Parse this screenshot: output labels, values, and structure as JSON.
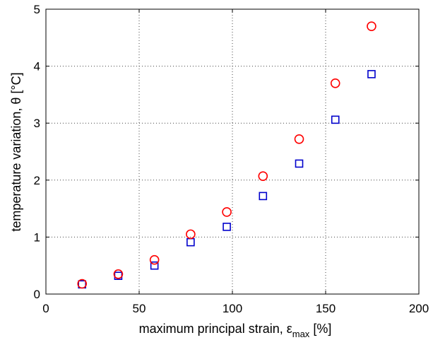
{
  "chart_data": {
    "type": "scatter",
    "title": "",
    "xlabel": {
      "main": "maximum principal strain, ε",
      "sub": "max",
      "suffix": " [%]"
    },
    "ylabel": "temperature variation, θ [°C]",
    "xlim": [
      0,
      200
    ],
    "ylim": [
      0,
      5
    ],
    "xticks": [
      "0",
      "50",
      "100",
      "150",
      "200"
    ],
    "yticks": [
      "0",
      "1",
      "2",
      "3",
      "4",
      "5"
    ],
    "grid": true,
    "grid_style": "dotted",
    "series": [
      {
        "marker": "square",
        "color": "#0000cc",
        "x": [
          19.4,
          38.8,
          58.2,
          77.6,
          97.0,
          116.4,
          135.8,
          155.2,
          174.6
        ],
        "y": [
          0.17,
          0.32,
          0.5,
          0.91,
          1.18,
          1.72,
          2.29,
          3.06,
          3.86
        ]
      },
      {
        "marker": "circle",
        "color": "#ff0000",
        "x": [
          19.4,
          38.8,
          58.2,
          77.6,
          97.0,
          116.4,
          135.8,
          155.2,
          174.6
        ],
        "y": [
          0.18,
          0.35,
          0.6,
          1.05,
          1.44,
          2.07,
          2.72,
          3.7,
          4.7
        ]
      }
    ]
  }
}
